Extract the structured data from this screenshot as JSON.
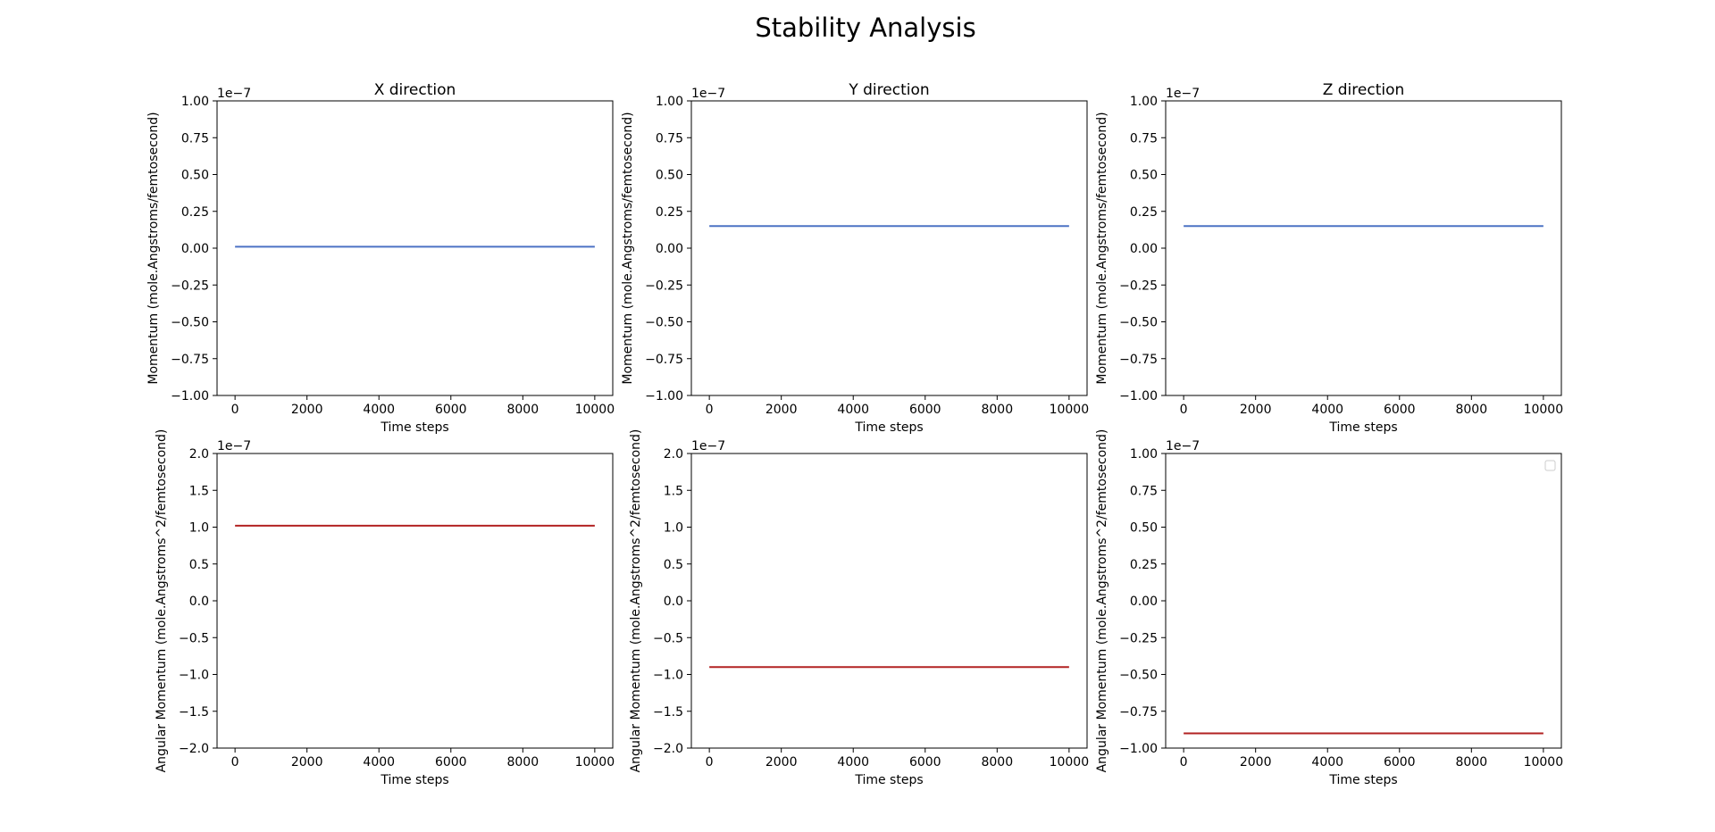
{
  "figure": {
    "title": "Stability Analysis"
  },
  "colors": {
    "momentum_line": "#4c72c4",
    "angular_line": "#b22222",
    "axes": "#000000",
    "background": "#ffffff"
  },
  "chart_data": [
    {
      "type": "line",
      "title": "X direction",
      "xlabel": "Time steps",
      "ylabel": "Momentum (mole.Angstroms/femtosecond)",
      "offset_text": "1e−7",
      "xlim": [
        -500,
        10500
      ],
      "ylim": [
        -1.0,
        1.0
      ],
      "xticks": [
        0,
        2000,
        4000,
        6000,
        8000,
        10000
      ],
      "xtick_labels": [
        "0",
        "2000",
        "4000",
        "6000",
        "8000",
        "10000"
      ],
      "yticks": [
        -1.0,
        -0.75,
        -0.5,
        -0.25,
        0.0,
        0.25,
        0.5,
        0.75,
        1.0
      ],
      "ytick_labels": [
        "−1.00",
        "−0.75",
        "−0.50",
        "−0.25",
        "0.00",
        "0.25",
        "0.50",
        "0.75",
        "1.00"
      ],
      "grid": false,
      "series": [
        {
          "color": "#4c72c4",
          "x": [
            0,
            10000
          ],
          "y": [
            0.01,
            0.01
          ]
        }
      ]
    },
    {
      "type": "line",
      "title": "Y direction",
      "xlabel": "Time steps",
      "ylabel": "Momentum (mole.Angstroms/femtosecond)",
      "offset_text": "1e−7",
      "xlim": [
        -500,
        10500
      ],
      "ylim": [
        -1.0,
        1.0
      ],
      "xticks": [
        0,
        2000,
        4000,
        6000,
        8000,
        10000
      ],
      "xtick_labels": [
        "0",
        "2000",
        "4000",
        "6000",
        "8000",
        "10000"
      ],
      "yticks": [
        -1.0,
        -0.75,
        -0.5,
        -0.25,
        0.0,
        0.25,
        0.5,
        0.75,
        1.0
      ],
      "ytick_labels": [
        "−1.00",
        "−0.75",
        "−0.50",
        "−0.25",
        "0.00",
        "0.25",
        "0.50",
        "0.75",
        "1.00"
      ],
      "grid": false,
      "series": [
        {
          "color": "#4c72c4",
          "x": [
            0,
            10000
          ],
          "y": [
            0.15,
            0.15
          ]
        }
      ]
    },
    {
      "type": "line",
      "title": "Z direction",
      "xlabel": "Time steps",
      "ylabel": "Momentum (mole.Angstroms/femtosecond)",
      "offset_text": "1e−7",
      "xlim": [
        -500,
        10500
      ],
      "ylim": [
        -1.0,
        1.0
      ],
      "xticks": [
        0,
        2000,
        4000,
        6000,
        8000,
        10000
      ],
      "xtick_labels": [
        "0",
        "2000",
        "4000",
        "6000",
        "8000",
        "10000"
      ],
      "yticks": [
        -1.0,
        -0.75,
        -0.5,
        -0.25,
        0.0,
        0.25,
        0.5,
        0.75,
        1.0
      ],
      "ytick_labels": [
        "−1.00",
        "−0.75",
        "−0.50",
        "−0.25",
        "0.00",
        "0.25",
        "0.50",
        "0.75",
        "1.00"
      ],
      "grid": false,
      "series": [
        {
          "color": "#4c72c4",
          "x": [
            0,
            10000
          ],
          "y": [
            0.15,
            0.15
          ]
        }
      ]
    },
    {
      "type": "line",
      "title": "",
      "xlabel": "Time steps",
      "ylabel": "Angular Momentum (mole.Angstroms^2/femtosecond)",
      "offset_text": "1e−7",
      "xlim": [
        -500,
        10500
      ],
      "ylim": [
        -2.0,
        2.0
      ],
      "xticks": [
        0,
        2000,
        4000,
        6000,
        8000,
        10000
      ],
      "xtick_labels": [
        "0",
        "2000",
        "4000",
        "6000",
        "8000",
        "10000"
      ],
      "yticks": [
        -2.0,
        -1.5,
        -1.0,
        -0.5,
        0.0,
        0.5,
        1.0,
        1.5,
        2.0
      ],
      "ytick_labels": [
        "−2.0",
        "−1.5",
        "−1.0",
        "−0.5",
        "0.0",
        "0.5",
        "1.0",
        "1.5",
        "2.0"
      ],
      "grid": false,
      "series": [
        {
          "color": "#b22222",
          "x": [
            0,
            10000
          ],
          "y": [
            1.02,
            1.02
          ]
        }
      ]
    },
    {
      "type": "line",
      "title": "",
      "xlabel": "Time steps",
      "ylabel": "Angular Momentum (mole.Angstroms^2/femtosecond)",
      "offset_text": "1e−7",
      "xlim": [
        -500,
        10500
      ],
      "ylim": [
        -2.0,
        2.0
      ],
      "xticks": [
        0,
        2000,
        4000,
        6000,
        8000,
        10000
      ],
      "xtick_labels": [
        "0",
        "2000",
        "4000",
        "6000",
        "8000",
        "10000"
      ],
      "yticks": [
        -2.0,
        -1.5,
        -1.0,
        -0.5,
        0.0,
        0.5,
        1.0,
        1.5,
        2.0
      ],
      "ytick_labels": [
        "−2.0",
        "−1.5",
        "−1.0",
        "−0.5",
        "0.0",
        "0.5",
        "1.0",
        "1.5",
        "2.0"
      ],
      "grid": false,
      "series": [
        {
          "color": "#b22222",
          "x": [
            0,
            10000
          ],
          "y": [
            -0.9,
            -0.9
          ]
        }
      ]
    },
    {
      "type": "line",
      "title": "",
      "xlabel": "Time steps",
      "ylabel": "Angular Momentum (mole.Angstroms^2/femtosecond)",
      "offset_text": "1e−7",
      "xlim": [
        -500,
        10500
      ],
      "ylim": [
        -1.0,
        1.0
      ],
      "xticks": [
        0,
        2000,
        4000,
        6000,
        8000,
        10000
      ],
      "xtick_labels": [
        "0",
        "2000",
        "4000",
        "6000",
        "8000",
        "10000"
      ],
      "yticks": [
        -1.0,
        -0.75,
        -0.5,
        -0.25,
        0.0,
        0.25,
        0.5,
        0.75,
        1.0
      ],
      "ytick_labels": [
        "−1.00",
        "−0.75",
        "−0.50",
        "−0.25",
        "0.00",
        "0.25",
        "0.50",
        "0.75",
        "1.00"
      ],
      "grid": false,
      "legend": "top-right",
      "legend_empty": true,
      "series": [
        {
          "color": "#b22222",
          "x": [
            0,
            10000
          ],
          "y": [
            -0.9,
            -0.9
          ]
        }
      ]
    }
  ]
}
